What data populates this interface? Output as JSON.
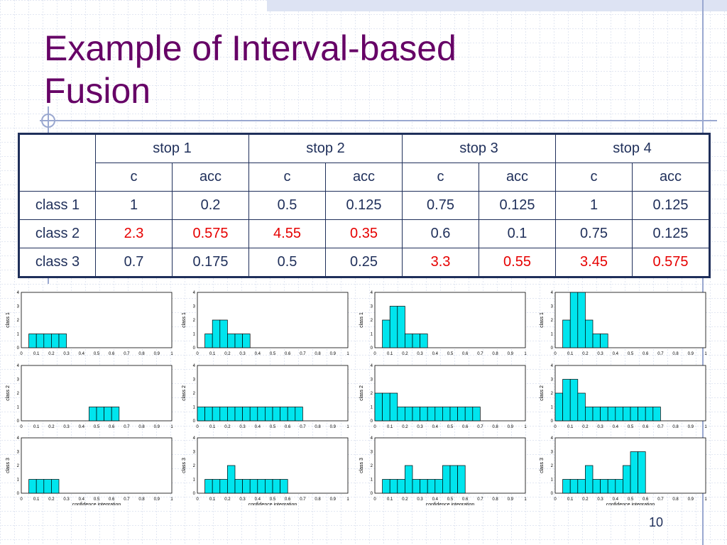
{
  "title": "Example of Interval-based Fusion",
  "page_number": "10",
  "colors": {
    "title": "#660066",
    "table_text": "#1f2f5a",
    "highlight": "#e60000",
    "bar_fill": "#00e5ee"
  },
  "table": {
    "stop_headers": [
      "stop 1",
      "stop 2",
      "stop 3",
      "stop 4"
    ],
    "sub_headers": [
      "c",
      "acc",
      "c",
      "acc",
      "c",
      "acc",
      "c",
      "acc"
    ],
    "rows": [
      {
        "label": "class 1",
        "cells": [
          {
            "v": "1",
            "hl": false
          },
          {
            "v": "0.2",
            "hl": false
          },
          {
            "v": "0.5",
            "hl": false
          },
          {
            "v": "0.125",
            "hl": false
          },
          {
            "v": "0.75",
            "hl": false
          },
          {
            "v": "0.125",
            "hl": false
          },
          {
            "v": "1",
            "hl": false
          },
          {
            "v": "0.125",
            "hl": false
          }
        ]
      },
      {
        "label": "class 2",
        "cells": [
          {
            "v": "2.3",
            "hl": true
          },
          {
            "v": "0.575",
            "hl": true
          },
          {
            "v": "4.55",
            "hl": true
          },
          {
            "v": "0.35",
            "hl": true
          },
          {
            "v": "0.6",
            "hl": false
          },
          {
            "v": "0.1",
            "hl": false
          },
          {
            "v": "0.75",
            "hl": false
          },
          {
            "v": "0.125",
            "hl": false
          }
        ]
      },
      {
        "label": "class 3",
        "cells": [
          {
            "v": "0.7",
            "hl": false
          },
          {
            "v": "0.175",
            "hl": false
          },
          {
            "v": "0.5",
            "hl": false
          },
          {
            "v": "0.25",
            "hl": false
          },
          {
            "v": "3.3",
            "hl": true
          },
          {
            "v": "0.55",
            "hl": true
          },
          {
            "v": "3.45",
            "hl": true
          },
          {
            "v": "0.575",
            "hl": true
          }
        ]
      }
    ]
  },
  "chart_data": {
    "type": "bar",
    "grid": "4x3 small multiples (columns: stop 1..4, rows: class 1..3)",
    "xlim": [
      0,
      1
    ],
    "ylim": [
      0,
      4
    ],
    "bin_width": 0.05,
    "x_ticks": [
      "0",
      "0.1",
      "0.2",
      "0.3",
      "0.4",
      "0.5",
      "0.6",
      "0.7",
      "0.8",
      "0.9",
      "1"
    ],
    "y_ticks": [
      "0",
      "1",
      "2",
      "3",
      "4"
    ],
    "xlabel": "confidence integration",
    "ylabels": [
      "class 1",
      "class 2",
      "class 3"
    ],
    "panels": [
      [
        {
          "bars": [
            [
              0.05,
              1
            ],
            [
              0.1,
              1
            ],
            [
              0.15,
              1
            ],
            [
              0.2,
              1
            ],
            [
              0.25,
              1
            ]
          ]
        },
        {
          "bars": [
            [
              0.05,
              1
            ],
            [
              0.1,
              2
            ],
            [
              0.15,
              2
            ],
            [
              0.2,
              1
            ],
            [
              0.25,
              1
            ],
            [
              0.3,
              1
            ]
          ]
        },
        {
          "bars": [
            [
              0.05,
              2
            ],
            [
              0.1,
              3
            ],
            [
              0.15,
              3
            ],
            [
              0.2,
              1
            ],
            [
              0.25,
              1
            ],
            [
              0.3,
              1
            ]
          ]
        },
        {
          "bars": [
            [
              0.05,
              2
            ],
            [
              0.1,
              4
            ],
            [
              0.15,
              4
            ],
            [
              0.2,
              2
            ],
            [
              0.25,
              1
            ],
            [
              0.3,
              1
            ]
          ]
        }
      ],
      [
        {
          "bars": [
            [
              0.45,
              1
            ],
            [
              0.5,
              1
            ],
            [
              0.55,
              1
            ],
            [
              0.6,
              1
            ]
          ]
        },
        {
          "bars": [
            [
              0,
              1
            ],
            [
              0.05,
              1
            ],
            [
              0.1,
              1
            ],
            [
              0.15,
              1
            ],
            [
              0.2,
              1
            ],
            [
              0.25,
              1
            ],
            [
              0.3,
              1
            ],
            [
              0.35,
              1
            ],
            [
              0.4,
              1
            ],
            [
              0.45,
              1
            ],
            [
              0.5,
              1
            ],
            [
              0.55,
              1
            ],
            [
              0.6,
              1
            ],
            [
              0.65,
              1
            ]
          ]
        },
        {
          "bars": [
            [
              0,
              2
            ],
            [
              0.05,
              2
            ],
            [
              0.1,
              2
            ],
            [
              0.15,
              1
            ],
            [
              0.2,
              1
            ],
            [
              0.25,
              1
            ],
            [
              0.3,
              1
            ],
            [
              0.35,
              1
            ],
            [
              0.4,
              1
            ],
            [
              0.45,
              1
            ],
            [
              0.5,
              1
            ],
            [
              0.55,
              1
            ],
            [
              0.6,
              1
            ],
            [
              0.65,
              1
            ]
          ]
        },
        {
          "bars": [
            [
              0,
              2
            ],
            [
              0.05,
              3
            ],
            [
              0.1,
              3
            ],
            [
              0.15,
              2
            ],
            [
              0.2,
              1
            ],
            [
              0.25,
              1
            ],
            [
              0.3,
              1
            ],
            [
              0.35,
              1
            ],
            [
              0.4,
              1
            ],
            [
              0.45,
              1
            ],
            [
              0.5,
              1
            ],
            [
              0.55,
              1
            ],
            [
              0.6,
              1
            ],
            [
              0.65,
              1
            ]
          ]
        }
      ],
      [
        {
          "bars": [
            [
              0.05,
              1
            ],
            [
              0.1,
              1
            ],
            [
              0.15,
              1
            ],
            [
              0.2,
              1
            ]
          ]
        },
        {
          "bars": [
            [
              0.05,
              1
            ],
            [
              0.1,
              1
            ],
            [
              0.15,
              1
            ],
            [
              0.2,
              2
            ],
            [
              0.25,
              1
            ],
            [
              0.3,
              1
            ],
            [
              0.35,
              1
            ],
            [
              0.4,
              1
            ],
            [
              0.45,
              1
            ],
            [
              0.5,
              1
            ],
            [
              0.55,
              1
            ]
          ]
        },
        {
          "bars": [
            [
              0.05,
              1
            ],
            [
              0.1,
              1
            ],
            [
              0.15,
              1
            ],
            [
              0.2,
              2
            ],
            [
              0.25,
              1
            ],
            [
              0.3,
              1
            ],
            [
              0.35,
              1
            ],
            [
              0.4,
              1
            ],
            [
              0.45,
              2
            ],
            [
              0.5,
              2
            ],
            [
              0.55,
              2
            ]
          ]
        },
        {
          "bars": [
            [
              0.05,
              1
            ],
            [
              0.1,
              1
            ],
            [
              0.15,
              1
            ],
            [
              0.2,
              2
            ],
            [
              0.25,
              1
            ],
            [
              0.3,
              1
            ],
            [
              0.35,
              1
            ],
            [
              0.4,
              1
            ],
            [
              0.45,
              2
            ],
            [
              0.5,
              3
            ],
            [
              0.55,
              3
            ]
          ]
        }
      ]
    ]
  }
}
